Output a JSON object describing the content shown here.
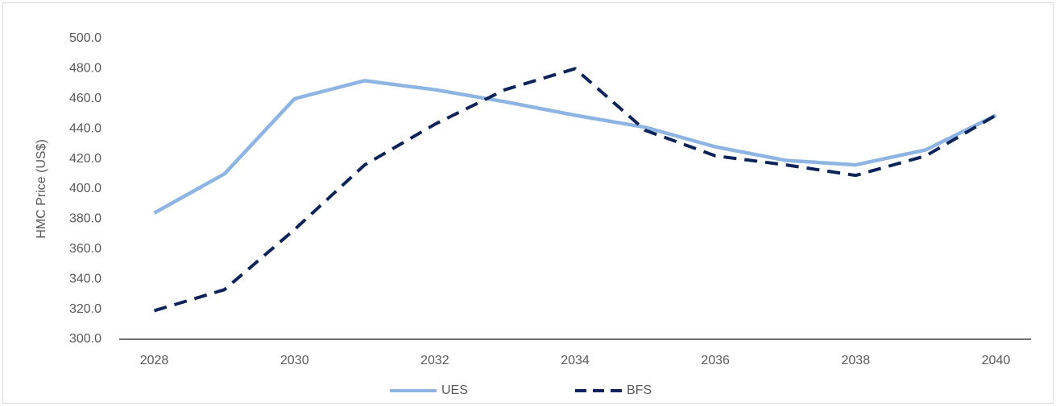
{
  "chart_data": {
    "type": "line",
    "y_label": "HMC Price (US$)",
    "x": [
      2028,
      2029,
      2030,
      2031,
      2032,
      2033,
      2034,
      2035,
      2036,
      2037,
      2038,
      2039,
      2040
    ],
    "series": [
      {
        "name": "UES",
        "color": "#8eb4e3",
        "dash": "solid",
        "values": [
          384,
          410,
          460,
          472,
          466,
          458,
          449,
          441,
          428,
          419,
          416,
          426,
          449
        ]
      },
      {
        "name": "BFS",
        "color": "#0c2459",
        "dash": "dashed",
        "values": [
          319,
          333,
          373,
          416,
          443,
          466,
          480,
          439,
          422,
          416,
          409,
          422,
          449
        ]
      }
    ],
    "xlim": [
      2027.5,
      2040.5
    ],
    "xticks": [
      2028,
      2030,
      2032,
      2034,
      2036,
      2038,
      2040
    ],
    "ylim": [
      300,
      500
    ],
    "yticks": [
      {
        "value": 300,
        "label": "300.0"
      },
      {
        "value": 320,
        "label": "320.0"
      },
      {
        "value": 340,
        "label": "340.0"
      },
      {
        "value": 360,
        "label": "360.0"
      },
      {
        "value": 380,
        "label": "380.0"
      },
      {
        "value": 400,
        "label": "400.0"
      },
      {
        "value": 420,
        "label": "420.0"
      },
      {
        "value": 440,
        "label": "440.0"
      },
      {
        "value": 460,
        "label": "460.0"
      },
      {
        "value": 480,
        "label": "480.0"
      },
      {
        "value": 500,
        "label": "500.0"
      }
    ],
    "grid": false,
    "legend": "bottom"
  }
}
